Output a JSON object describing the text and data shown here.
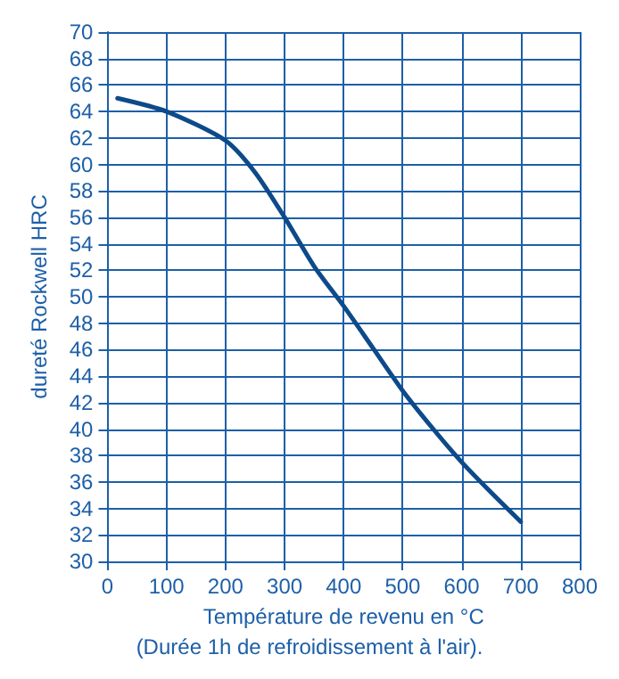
{
  "chart_data": {
    "type": "line",
    "xlabel": "Température de revenu en °C",
    "ylabel": "dureté Rockwell HRC",
    "annotations": [
      "(Durée 1h de refroidissement à l'air)."
    ],
    "x": [
      17,
      100,
      200,
      250,
      300,
      350,
      400,
      450,
      500,
      550,
      600,
      650,
      700
    ],
    "series": [
      {
        "color": "#0d4a8a",
        "values": [
          65,
          64,
          61.8,
          59.4,
          56,
          52.3,
          49.3,
          46.1,
          42.9,
          40.1,
          37.5,
          35.2,
          33
        ]
      }
    ],
    "xlim": [
      0,
      800
    ],
    "xticks": [
      0,
      100,
      200,
      300,
      400,
      500,
      600,
      700,
      800
    ],
    "ylim": [
      30,
      70
    ],
    "yticks": [
      30,
      32,
      34,
      36,
      38,
      40,
      42,
      44,
      46,
      48,
      50,
      52,
      54,
      56,
      58,
      60,
      62,
      64,
      66,
      68,
      70
    ],
    "grid": true,
    "marker": "none",
    "line_style": "solid"
  }
}
